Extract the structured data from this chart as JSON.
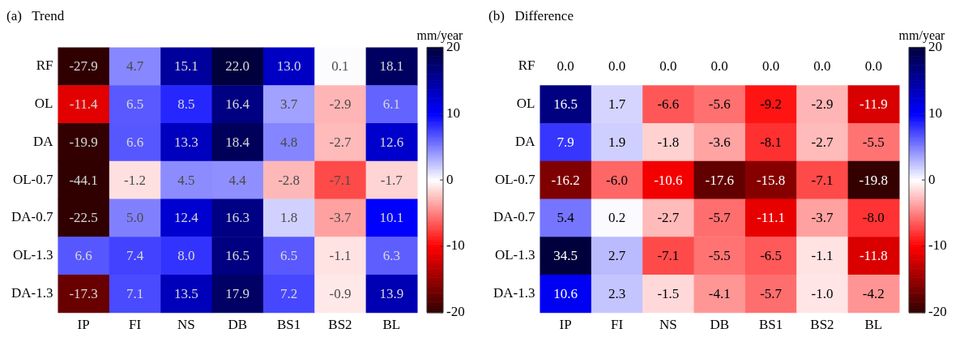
{
  "chart_data": [
    {
      "type": "heatmap",
      "title": "(a)   Trend",
      "clabel": "mm/year",
      "categories": [
        "IP",
        "FI",
        "NS",
        "DB",
        "BS1",
        "BS2",
        "BL"
      ],
      "y_categories": [
        "RF",
        "OL",
        "DA",
        "OL-0.7",
        "DA-0.7",
        "OL-1.3",
        "DA-1.3"
      ],
      "cells": [
        [
          -27.9,
          4.7,
          15.1,
          22.0,
          13.0,
          0.1,
          18.1
        ],
        [
          -11.4,
          6.5,
          8.5,
          16.4,
          3.7,
          -2.9,
          6.1
        ],
        [
          -19.9,
          6.6,
          13.3,
          18.4,
          4.8,
          -2.7,
          12.6
        ],
        [
          -44.1,
          -1.2,
          4.5,
          4.4,
          -2.8,
          -7.1,
          -1.7
        ],
        [
          -22.5,
          5.0,
          12.4,
          16.3,
          1.8,
          -3.7,
          10.1
        ],
        [
          6.6,
          7.4,
          8.0,
          16.5,
          6.5,
          -1.1,
          6.3
        ],
        [
          -17.3,
          7.1,
          13.5,
          17.9,
          7.2,
          -0.9,
          13.9
        ]
      ],
      "cell_labels": [
        [
          "-27.9",
          "4.7",
          "15.1",
          "22.0",
          "13.0",
          "0.1",
          "18.1"
        ],
        [
          "-11.4",
          "6.5",
          "8.5",
          "16.4",
          "3.7",
          "-2.9",
          "6.1"
        ],
        [
          "-19.9",
          "6.6",
          "13.3",
          "18.4",
          "4.8",
          "-2.7",
          "12.6"
        ],
        [
          "-44.1",
          "-1.2",
          "4.5",
          "4.4",
          "-2.8",
          "-7.1",
          "-1.7"
        ],
        [
          "-22.5",
          "5.0",
          "12.4",
          "16.3",
          "1.8",
          "-3.7",
          "10.1"
        ],
        [
          "6.6",
          "7.4",
          "8.0",
          "16.5",
          "6.5",
          "-1.1",
          "6.3"
        ],
        [
          "-17.3",
          "7.1",
          "13.5",
          "17.9",
          "7.2",
          "-0.9",
          "13.9"
        ]
      ],
      "clim": [
        -20,
        20
      ],
      "cticks": [
        -20,
        -10,
        0,
        10,
        20
      ]
    },
    {
      "type": "heatmap",
      "title": "(b)   Difference",
      "clabel": "mm/year",
      "categories": [
        "IP",
        "FI",
        "NS",
        "DB",
        "BS1",
        "BS2",
        "BL"
      ],
      "y_categories": [
        "RF",
        "OL",
        "DA",
        "OL-0.7",
        "DA-0.7",
        "OL-1.3",
        "DA-1.3"
      ],
      "cells": [
        [
          0.0,
          0.0,
          0.0,
          0.0,
          0.0,
          0.0,
          0.0
        ],
        [
          16.5,
          1.7,
          -6.6,
          -5.6,
          -9.2,
          -2.9,
          -11.9
        ],
        [
          7.9,
          1.9,
          -1.8,
          -3.6,
          -8.1,
          -2.7,
          -5.5
        ],
        [
          -16.2,
          -6.0,
          -10.6,
          -17.6,
          -15.8,
          -7.1,
          -19.8
        ],
        [
          5.4,
          0.2,
          -2.7,
          -5.7,
          -11.1,
          -3.7,
          -8.0
        ],
        [
          34.5,
          2.7,
          -7.1,
          -5.5,
          -6.5,
          -1.1,
          -11.8
        ],
        [
          10.6,
          2.3,
          -1.5,
          -4.1,
          -5.7,
          -1.0,
          -4.2
        ]
      ],
      "cell_labels": [
        [
          "0.0",
          "0.0",
          "0.0",
          "0.0",
          "0.0",
          "0.0",
          "0.0"
        ],
        [
          "16.5",
          "1.7",
          "-6.6",
          "-5.6",
          "-9.2",
          "-2.9",
          "-11.9"
        ],
        [
          "7.9",
          "1.9",
          "-1.8",
          "-3.6",
          "-8.1",
          "-2.7",
          "-5.5"
        ],
        [
          "-16.2",
          "-6.0",
          "-10.6",
          "-17.6",
          "-15.8",
          "-7.1",
          "-19.8"
        ],
        [
          "5.4",
          "0.2",
          "-2.7",
          "-5.7",
          "-11.1",
          "-3.7",
          "-8.0"
        ],
        [
          "34.5",
          "2.7",
          "-7.1",
          "-5.5",
          "-6.5",
          "-1.1",
          "-11.8"
        ],
        [
          "10.6",
          "2.3",
          "-1.5",
          "-4.1",
          "-5.7",
          "-1.0",
          "-4.2"
        ]
      ],
      "clim": [
        -20,
        20
      ],
      "cticks": [
        -20,
        -10,
        0,
        10,
        20
      ]
    }
  ]
}
